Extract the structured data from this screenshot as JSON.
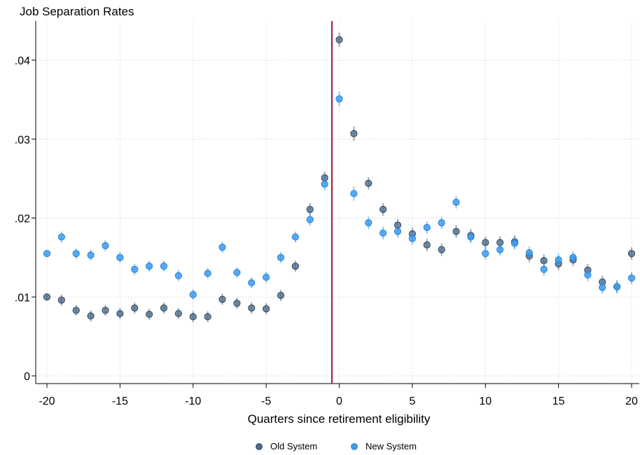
{
  "chart_data": {
    "type": "scatter",
    "title": "Job Separation Rates",
    "xlabel": "Quarters since retirement eligibility",
    "ylabel": "",
    "xlim": [
      -20,
      20
    ],
    "ylim": [
      0,
      0.044
    ],
    "xticks": [
      -20,
      -15,
      -10,
      -5,
      0,
      5,
      10,
      15,
      20
    ],
    "xtick_labels": [
      "-20",
      "-15",
      "-10",
      "-5",
      "0",
      "5",
      "10",
      "15",
      "20"
    ],
    "yticks": [
      0,
      0.01,
      0.02,
      0.03,
      0.04
    ],
    "ytick_labels": [
      "0",
      ".01",
      ".02",
      ".03",
      ".04"
    ],
    "grid": true,
    "reference_line": {
      "x": -0.5,
      "color": "#9b1b3b"
    },
    "legend_position": "bottom",
    "x": [
      -20,
      -19,
      -18,
      -17,
      -16,
      -15,
      -14,
      -13,
      -12,
      -11,
      -10,
      -9,
      -8,
      -7,
      -6,
      -5,
      -4,
      -3,
      -2,
      -1,
      0,
      1,
      2,
      3,
      4,
      5,
      6,
      7,
      8,
      9,
      10,
      11,
      12,
      13,
      14,
      15,
      16,
      17,
      18,
      19,
      20
    ],
    "series": [
      {
        "name": "Old System",
        "color": "#4a6a8a",
        "values": [
          0.01,
          0.0096,
          0.0083,
          0.0076,
          0.0083,
          0.0079,
          0.0086,
          0.0078,
          0.0086,
          0.0079,
          0.0075,
          0.0075,
          0.0097,
          0.0092,
          0.0086,
          0.0085,
          0.0102,
          0.0139,
          0.0211,
          0.0251,
          0.0426,
          0.0307,
          0.0244,
          0.0211,
          0.0191,
          0.018,
          0.0166,
          0.016,
          0.0183,
          0.0178,
          0.0169,
          0.0169,
          0.017,
          0.0152,
          0.0146,
          0.0142,
          0.0147,
          0.0134,
          0.0119,
          0.0113,
          0.0155
        ],
        "errors": [
          0.0004,
          0.0007,
          0.0007,
          0.0007,
          0.0007,
          0.0007,
          0.0007,
          0.0007,
          0.0007,
          0.0007,
          0.0007,
          0.0007,
          0.0007,
          0.0007,
          0.0007,
          0.0007,
          0.0007,
          0.0007,
          0.0008,
          0.0008,
          0.0009,
          0.0009,
          0.0008,
          0.0008,
          0.0008,
          0.0008,
          0.0008,
          0.0008,
          0.0008,
          0.0008,
          0.0008,
          0.0008,
          0.0008,
          0.0008,
          0.0008,
          0.0008,
          0.0008,
          0.0008,
          0.0008,
          0.0008,
          0.0008
        ]
      },
      {
        "name": "New System",
        "color": "#3d9df5",
        "values": [
          0.0155,
          0.0176,
          0.0155,
          0.0153,
          0.0165,
          0.015,
          0.0135,
          0.0139,
          0.0139,
          0.0127,
          0.0103,
          0.013,
          0.0163,
          0.0131,
          0.0118,
          0.0125,
          0.015,
          0.0176,
          0.0198,
          0.0243,
          0.0351,
          0.0231,
          0.0194,
          0.0181,
          0.0183,
          0.0174,
          0.0188,
          0.0194,
          0.022,
          0.0176,
          0.0155,
          0.016,
          0.0168,
          0.0156,
          0.0135,
          0.0147,
          0.015,
          0.0128,
          0.0112,
          0.0113,
          0.0124
        ],
        "errors": [
          0.0004,
          0.0007,
          0.0007,
          0.0007,
          0.0007,
          0.0007,
          0.0007,
          0.0007,
          0.0007,
          0.0007,
          0.0007,
          0.0007,
          0.0007,
          0.0007,
          0.0007,
          0.0007,
          0.0007,
          0.0007,
          0.0008,
          0.0008,
          0.0009,
          0.0009,
          0.0008,
          0.0008,
          0.0008,
          0.0008,
          0.0008,
          0.0008,
          0.0008,
          0.0008,
          0.0008,
          0.0008,
          0.0008,
          0.0008,
          0.0008,
          0.0008,
          0.0008,
          0.0008,
          0.0008,
          0.0008,
          0.0008
        ]
      }
    ]
  }
}
